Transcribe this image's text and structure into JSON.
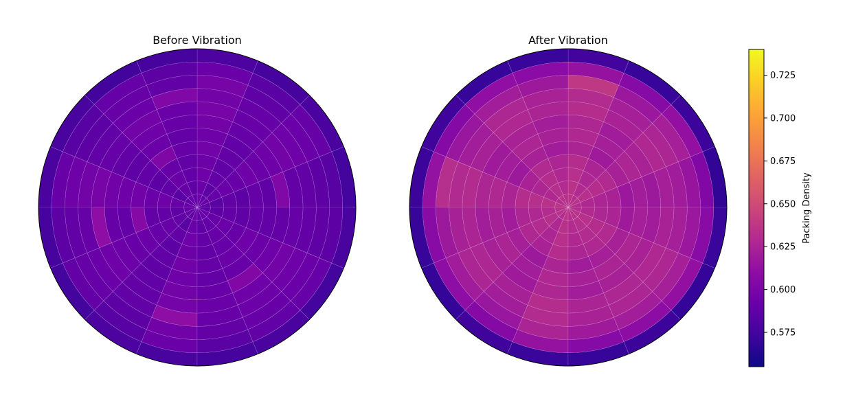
{
  "chart_data": [
    {
      "type": "heatmap",
      "projection": "polar",
      "title": "Before Vibration",
      "rings": 12,
      "sectors": 16,
      "sector_offset": "0 degrees (east), counterclockwise",
      "grid": true,
      "values": [
        [
          0.575,
          0.578,
          0.576,
          0.579,
          0.576,
          0.574,
          0.577,
          0.578,
          0.576,
          0.575,
          0.579,
          0.577,
          0.576,
          0.578,
          0.575,
          0.577
        ],
        [
          0.584,
          0.59,
          0.585,
          0.592,
          0.586,
          0.59,
          0.584,
          0.591,
          0.586,
          0.589,
          0.584,
          0.592,
          0.585,
          0.588,
          0.59,
          0.586
        ],
        [
          0.586,
          0.592,
          0.587,
          0.598,
          0.588,
          0.591,
          0.586,
          0.594,
          0.588,
          0.59,
          0.586,
          0.595,
          0.589,
          0.591,
          0.592,
          0.587
        ],
        [
          0.588,
          0.594,
          0.59,
          0.596,
          0.603,
          0.592,
          0.588,
          0.596,
          0.59,
          0.592,
          0.588,
          0.61,
          0.591,
          0.593,
          0.594,
          0.589
        ],
        [
          0.589,
          0.596,
          0.591,
          0.598,
          0.592,
          0.596,
          0.59,
          0.598,
          0.61,
          0.594,
          0.589,
          0.597,
          0.592,
          0.594,
          0.596,
          0.59
        ],
        [
          0.603,
          0.594,
          0.59,
          0.596,
          0.591,
          0.594,
          0.588,
          0.595,
          0.591,
          0.593,
          0.588,
          0.596,
          0.591,
          0.604,
          0.594,
          0.589
        ],
        [
          0.587,
          0.592,
          0.588,
          0.594,
          0.589,
          0.592,
          0.587,
          0.594,
          0.589,
          0.591,
          0.587,
          0.594,
          0.589,
          0.591,
          0.592,
          0.588
        ],
        [
          0.59,
          0.594,
          0.589,
          0.596,
          0.59,
          0.602,
          0.588,
          0.595,
          0.605,
          0.592,
          0.588,
          0.595,
          0.59,
          0.592,
          0.594,
          0.589
        ],
        [
          0.586,
          0.591,
          0.587,
          0.593,
          0.588,
          0.591,
          0.586,
          0.592,
          0.588,
          0.59,
          0.586,
          0.593,
          0.588,
          0.59,
          0.591,
          0.587
        ],
        [
          0.588,
          0.592,
          0.589,
          0.594,
          0.589,
          0.592,
          0.588,
          0.594,
          0.589,
          0.591,
          0.588,
          0.594,
          0.589,
          0.591,
          0.592,
          0.588
        ],
        [
          0.585,
          0.59,
          0.586,
          0.592,
          0.587,
          0.59,
          0.585,
          0.591,
          0.587,
          0.589,
          0.585,
          0.592,
          0.587,
          0.589,
          0.59,
          0.586
        ],
        [
          0.587,
          0.591,
          0.588,
          0.593,
          0.588,
          0.591,
          0.587,
          0.592,
          0.588,
          0.59,
          0.587,
          0.593,
          0.588,
          0.59,
          0.591,
          0.587
        ]
      ]
    },
    {
      "type": "heatmap",
      "projection": "polar",
      "title": "After Vibration",
      "rings": 12,
      "sectors": 16,
      "sector_offset": "0 degrees (east), counterclockwise",
      "grid": true,
      "values": [
        [
          0.568,
          0.572,
          0.57,
          0.574,
          0.571,
          0.57,
          0.573,
          0.572,
          0.57,
          0.569,
          0.573,
          0.571,
          0.57,
          0.572,
          0.569,
          0.571
        ],
        [
          0.604,
          0.612,
          0.606,
          0.614,
          0.608,
          0.611,
          0.605,
          0.613,
          0.607,
          0.61,
          0.605,
          0.614,
          0.606,
          0.609,
          0.612,
          0.607
        ],
        [
          0.615,
          0.622,
          0.617,
          0.638,
          0.618,
          0.621,
          0.616,
          0.632,
          0.618,
          0.62,
          0.616,
          0.625,
          0.619,
          0.621,
          0.622,
          0.617
        ],
        [
          0.62,
          0.626,
          0.622,
          0.63,
          0.624,
          0.627,
          0.621,
          0.629,
          0.623,
          0.626,
          0.621,
          0.63,
          0.624,
          0.626,
          0.627,
          0.622
        ],
        [
          0.622,
          0.628,
          0.624,
          0.631,
          0.625,
          0.628,
          0.623,
          0.63,
          0.625,
          0.627,
          0.623,
          0.631,
          0.625,
          0.627,
          0.628,
          0.624
        ],
        [
          0.618,
          0.624,
          0.62,
          0.627,
          0.621,
          0.624,
          0.619,
          0.626,
          0.621,
          0.623,
          0.619,
          0.627,
          0.621,
          0.623,
          0.624,
          0.62
        ],
        [
          0.621,
          0.626,
          0.622,
          0.628,
          0.623,
          0.626,
          0.621,
          0.628,
          0.623,
          0.625,
          0.621,
          0.628,
          0.623,
          0.625,
          0.626,
          0.622
        ],
        [
          0.617,
          0.623,
          0.619,
          0.625,
          0.62,
          0.623,
          0.618,
          0.625,
          0.62,
          0.622,
          0.618,
          0.625,
          0.62,
          0.622,
          0.623,
          0.619
        ],
        [
          0.624,
          0.629,
          0.625,
          0.631,
          0.626,
          0.629,
          0.624,
          0.631,
          0.626,
          0.628,
          0.624,
          0.631,
          0.626,
          0.628,
          0.629,
          0.625
        ],
        [
          0.626,
          0.631,
          0.627,
          0.633,
          0.628,
          0.631,
          0.626,
          0.632,
          0.628,
          0.63,
          0.626,
          0.633,
          0.628,
          0.63,
          0.631,
          0.627
        ],
        [
          0.628,
          0.633,
          0.629,
          0.634,
          0.63,
          0.632,
          0.628,
          0.634,
          0.63,
          0.632,
          0.628,
          0.634,
          0.63,
          0.632,
          0.633,
          0.629
        ],
        [
          0.63,
          0.634,
          0.631,
          0.636,
          0.632,
          0.634,
          0.63,
          0.636,
          0.632,
          0.633,
          0.63,
          0.636,
          0.632,
          0.633,
          0.634,
          0.631
        ]
      ]
    }
  ],
  "colorbar": {
    "label": "Packing Density",
    "colormap": "plasma",
    "min": 0.555,
    "max": 0.74,
    "ticks": [
      0.575,
      0.6,
      0.625,
      0.65,
      0.675,
      0.7,
      0.725
    ],
    "tick_labels": [
      "0.575",
      "0.600",
      "0.625",
      "0.650",
      "0.675",
      "0.700",
      "0.725"
    ]
  }
}
